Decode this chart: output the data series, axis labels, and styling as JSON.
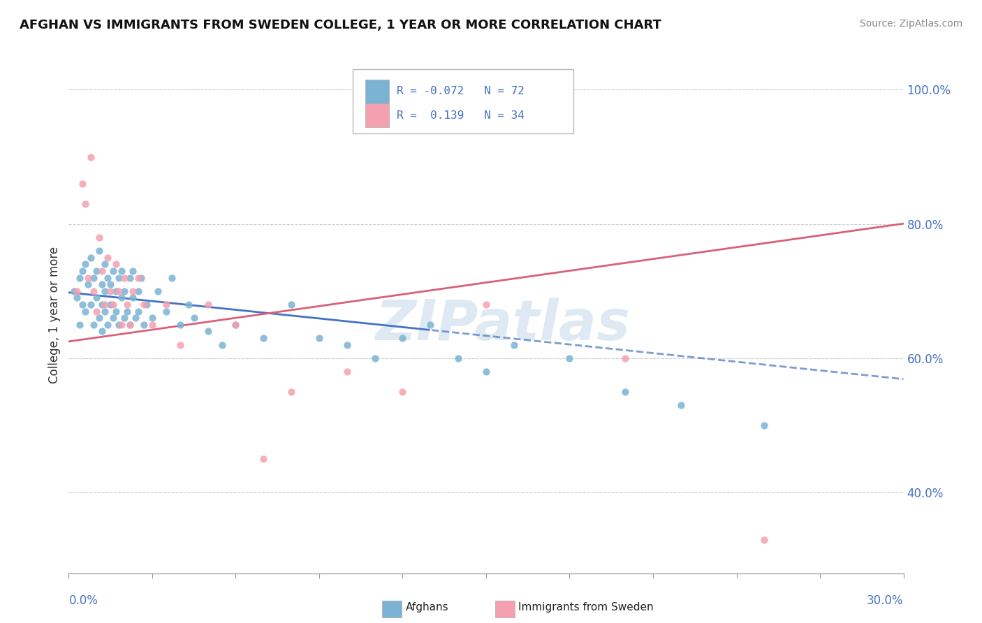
{
  "title": "AFGHAN VS IMMIGRANTS FROM SWEDEN COLLEGE, 1 YEAR OR MORE CORRELATION CHART",
  "source": "Source: ZipAtlas.com",
  "ylabel": "College, 1 year or more",
  "xlim": [
    0.0,
    0.3
  ],
  "ylim": [
    0.28,
    1.05
  ],
  "yticks": [
    0.4,
    0.6,
    0.8,
    1.0
  ],
  "ytick_labels": [
    "40.0%",
    "60.0%",
    "80.0%",
    "100.0%"
  ],
  "blue_color": "#7ab3d4",
  "pink_color": "#f4a0b0",
  "blue_line_color": "#4472c4",
  "pink_line_color": "#d9607a",
  "R_blue": -0.072,
  "N_blue": 72,
  "R_pink": 0.139,
  "N_pink": 34,
  "legend_R_blue": "-0.072",
  "legend_R_pink": "0.139",
  "watermark_text": "ZIPatlas",
  "blue_line_solid_xmax": 0.13,
  "blue_x": [
    0.002,
    0.003,
    0.004,
    0.004,
    0.005,
    0.005,
    0.006,
    0.006,
    0.007,
    0.008,
    0.008,
    0.009,
    0.009,
    0.01,
    0.01,
    0.011,
    0.011,
    0.012,
    0.012,
    0.012,
    0.013,
    0.013,
    0.013,
    0.014,
    0.014,
    0.015,
    0.015,
    0.016,
    0.016,
    0.017,
    0.017,
    0.018,
    0.018,
    0.019,
    0.019,
    0.02,
    0.02,
    0.021,
    0.022,
    0.022,
    0.023,
    0.023,
    0.024,
    0.025,
    0.025,
    0.026,
    0.027,
    0.028,
    0.03,
    0.032,
    0.035,
    0.037,
    0.04,
    0.043,
    0.045,
    0.05,
    0.055,
    0.06,
    0.07,
    0.08,
    0.09,
    0.1,
    0.11,
    0.12,
    0.13,
    0.14,
    0.15,
    0.16,
    0.18,
    0.2,
    0.22,
    0.25
  ],
  "blue_y": [
    0.7,
    0.69,
    0.72,
    0.65,
    0.73,
    0.68,
    0.74,
    0.67,
    0.71,
    0.75,
    0.68,
    0.72,
    0.65,
    0.73,
    0.69,
    0.76,
    0.66,
    0.71,
    0.68,
    0.64,
    0.74,
    0.7,
    0.67,
    0.72,
    0.65,
    0.71,
    0.68,
    0.73,
    0.66,
    0.7,
    0.67,
    0.72,
    0.65,
    0.69,
    0.73,
    0.66,
    0.7,
    0.67,
    0.72,
    0.65,
    0.69,
    0.73,
    0.66,
    0.7,
    0.67,
    0.72,
    0.65,
    0.68,
    0.66,
    0.7,
    0.67,
    0.72,
    0.65,
    0.68,
    0.66,
    0.64,
    0.62,
    0.65,
    0.63,
    0.68,
    0.63,
    0.62,
    0.6,
    0.63,
    0.65,
    0.6,
    0.58,
    0.62,
    0.6,
    0.55,
    0.53,
    0.5
  ],
  "pink_x": [
    0.003,
    0.005,
    0.006,
    0.007,
    0.008,
    0.009,
    0.01,
    0.011,
    0.012,
    0.013,
    0.014,
    0.015,
    0.016,
    0.017,
    0.018,
    0.019,
    0.02,
    0.021,
    0.022,
    0.023,
    0.025,
    0.027,
    0.03,
    0.035,
    0.04,
    0.05,
    0.06,
    0.07,
    0.08,
    0.1,
    0.12,
    0.15,
    0.2,
    0.25
  ],
  "pink_y": [
    0.7,
    0.86,
    0.83,
    0.72,
    0.9,
    0.7,
    0.67,
    0.78,
    0.73,
    0.68,
    0.75,
    0.7,
    0.68,
    0.74,
    0.7,
    0.65,
    0.72,
    0.68,
    0.65,
    0.7,
    0.72,
    0.68,
    0.65,
    0.68,
    0.62,
    0.68,
    0.65,
    0.45,
    0.55,
    0.58,
    0.55,
    0.68,
    0.6,
    0.33
  ]
}
